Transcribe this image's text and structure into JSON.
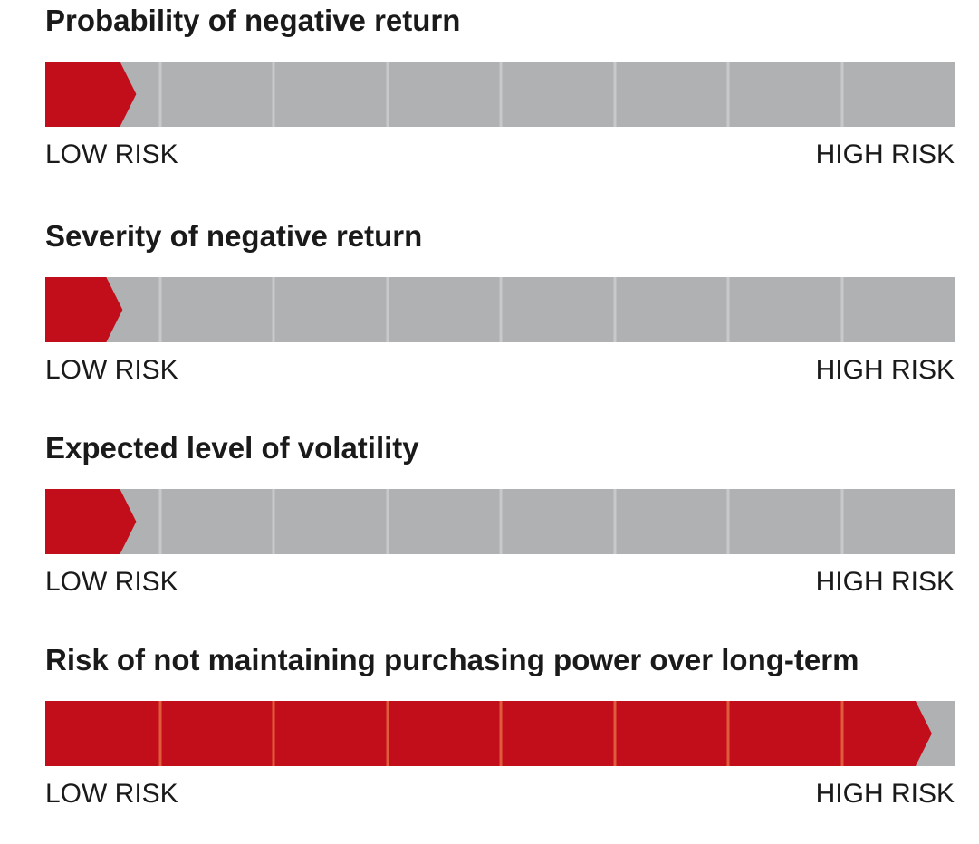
{
  "colors": {
    "track": "#b0b1b3",
    "fill": "#c20e1a",
    "divider_on_track": "#c8c9cb",
    "divider_on_fill": "#e05a3c"
  },
  "gauges": [
    {
      "title": "Probability of negative return",
      "fill_fraction": 0.1,
      "low_label": "LOW RISK",
      "high_label": "HIGH RISK"
    },
    {
      "title": "Severity of negative return",
      "fill_fraction": 0.085,
      "low_label": "LOW RISK",
      "high_label": "HIGH RISK"
    },
    {
      "title": "Expected level of volatility",
      "fill_fraction": 0.1,
      "low_label": "LOW RISK",
      "high_label": "HIGH RISK"
    },
    {
      "title": "Risk of not maintaining purchasing power over long-term",
      "fill_fraction": 0.975,
      "low_label": "LOW RISK",
      "high_label": "HIGH RISK"
    }
  ]
}
